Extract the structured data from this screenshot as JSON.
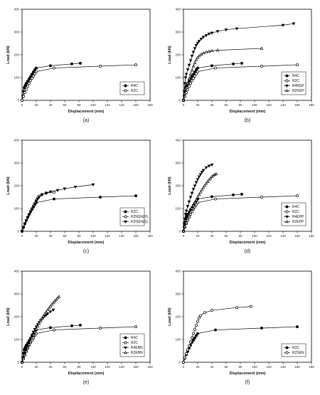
{
  "chart_data": [
    {
      "type": "line",
      "panel_label": "(a)",
      "xlabel": "Displacement (mm)",
      "ylabel": "Load (kN)",
      "xlim": [
        0,
        180
      ],
      "ylim": [
        0,
        400
      ],
      "xticks": [
        0,
        20,
        40,
        60,
        80,
        100,
        120,
        140,
        160,
        180
      ],
      "yticks": [
        0,
        100,
        200,
        300,
        400
      ],
      "legend_position": "bottom-right",
      "series": [
        {
          "name": "R4C",
          "marker": "filled-circle",
          "x": [
            0,
            1,
            2,
            3,
            4,
            5,
            6,
            8,
            10,
            12,
            14,
            16,
            18,
            20,
            40,
            70,
            82
          ],
          "y": [
            0,
            20,
            40,
            55,
            62,
            68,
            75,
            85,
            95,
            105,
            115,
            125,
            135,
            142,
            152,
            160,
            163
          ]
        },
        {
          "name": "R2C",
          "marker": "open-circle",
          "x": [
            0,
            2,
            4,
            6,
            8,
            10,
            12,
            14,
            16,
            18,
            20,
            45,
            110,
            160
          ],
          "y": [
            0,
            18,
            34,
            48,
            62,
            75,
            87,
            97,
            107,
            117,
            126,
            142,
            150,
            156
          ]
        }
      ]
    },
    {
      "type": "line",
      "panel_label": "(b)",
      "xlabel": "Displacement (mm)",
      "ylabel": "Load (kN)",
      "xlim": [
        0,
        180
      ],
      "ylim": [
        0,
        400
      ],
      "xticks": [
        0,
        20,
        40,
        60,
        80,
        100,
        120,
        140,
        160,
        180
      ],
      "yticks": [
        0,
        100,
        200,
        300,
        400
      ],
      "legend_position": "bottom-right",
      "series": [
        {
          "name": "R4C",
          "marker": "filled-circle",
          "x": [
            0,
            1,
            2,
            3,
            4,
            5,
            6,
            8,
            10,
            12,
            14,
            16,
            18,
            20,
            40,
            70,
            82
          ],
          "y": [
            0,
            20,
            40,
            55,
            62,
            68,
            75,
            85,
            95,
            105,
            115,
            125,
            135,
            142,
            152,
            160,
            163
          ]
        },
        {
          "name": "R2C",
          "marker": "open-circle",
          "x": [
            0,
            2,
            4,
            6,
            8,
            10,
            12,
            14,
            16,
            18,
            20,
            45,
            110,
            160
          ],
          "y": [
            0,
            18,
            34,
            48,
            62,
            75,
            87,
            97,
            107,
            117,
            126,
            142,
            150,
            156
          ]
        },
        {
          "name": "R4NSP",
          "marker": "filled-triangle-down",
          "x": [
            0,
            1,
            2,
            3,
            4,
            6,
            8,
            10,
            12,
            14,
            16,
            18,
            20,
            22,
            25,
            28,
            32,
            36,
            40,
            48,
            60,
            75,
            140,
            155
          ],
          "y": [
            0,
            40,
            75,
            100,
            115,
            135,
            155,
            175,
            195,
            212,
            228,
            242,
            252,
            260,
            270,
            278,
            285,
            292,
            296,
            303,
            310,
            315,
            330,
            337
          ]
        },
        {
          "name": "R2NSP",
          "marker": "open-triangle-up",
          "x": [
            0,
            2,
            4,
            6,
            8,
            10,
            12,
            14,
            16,
            18,
            20,
            22,
            25,
            28,
            32,
            36,
            40,
            48,
            110
          ],
          "y": [
            0,
            30,
            55,
            75,
            95,
            115,
            132,
            150,
            165,
            178,
            188,
            195,
            202,
            208,
            212,
            215,
            218,
            220,
            228
          ]
        }
      ]
    },
    {
      "type": "line",
      "panel_label": "(c)",
      "xlabel": "Displacement (mm)",
      "ylabel": "Load (kN)",
      "xlim": [
        0,
        180
      ],
      "ylim": [
        0,
        400
      ],
      "xticks": [
        0,
        20,
        40,
        60,
        80,
        100,
        120,
        140,
        160,
        180
      ],
      "yticks": [
        0,
        100,
        200,
        300,
        400
      ],
      "legend_position": "bottom-right",
      "series": [
        {
          "name": "R2C",
          "marker": "filled-circle",
          "x": [
            0,
            2,
            4,
            6,
            8,
            10,
            12,
            14,
            16,
            18,
            20,
            45,
            110,
            160
          ],
          "y": [
            0,
            18,
            34,
            48,
            62,
            75,
            87,
            97,
            107,
            117,
            126,
            142,
            150,
            156
          ]
        },
        {
          "name": "R2NSN(H)",
          "marker": "open-circle",
          "x": [
            0,
            2,
            4,
            6,
            8,
            10,
            12,
            14,
            16,
            18,
            20,
            22,
            24,
            28,
            34,
            45
          ],
          "y": [
            0,
            18,
            34,
            48,
            62,
            75,
            88,
            100,
            112,
            124,
            136,
            146,
            155,
            162,
            168,
            172
          ]
        },
        {
          "name": "R2NSN(S)",
          "marker": "filled-triangle-down",
          "x": [
            0,
            2,
            4,
            6,
            8,
            10,
            12,
            14,
            16,
            18,
            20,
            22,
            24,
            28,
            34,
            40,
            50,
            60,
            75,
            100
          ],
          "y": [
            0,
            16,
            32,
            46,
            60,
            72,
            84,
            96,
            108,
            120,
            132,
            142,
            150,
            160,
            168,
            174,
            180,
            187,
            195,
            205
          ]
        }
      ]
    },
    {
      "type": "line",
      "panel_label": "(d)",
      "xlabel": "Displacement (mm)",
      "ylabel": "Load (kN)",
      "xlim": [
        0,
        180
      ],
      "ylim": [
        0,
        400
      ],
      "xticks": [
        0,
        20,
        40,
        60,
        80,
        100,
        120,
        140,
        160,
        180
      ],
      "yticks": [
        0,
        100,
        200,
        300,
        400
      ],
      "legend_position": "bottom-right",
      "series": [
        {
          "name": "R4C",
          "marker": "filled-circle",
          "x": [
            0,
            1,
            2,
            3,
            4,
            5,
            6,
            8,
            10,
            12,
            14,
            16,
            18,
            20,
            40,
            70,
            82
          ],
          "y": [
            0,
            20,
            40,
            55,
            62,
            68,
            75,
            85,
            95,
            105,
            115,
            125,
            135,
            142,
            152,
            160,
            163
          ]
        },
        {
          "name": "R2C",
          "marker": "open-circle",
          "x": [
            0,
            2,
            4,
            6,
            8,
            10,
            12,
            14,
            16,
            18,
            20,
            45,
            110,
            160
          ],
          "y": [
            0,
            18,
            34,
            48,
            62,
            75,
            87,
            97,
            107,
            117,
            126,
            142,
            150,
            156
          ]
        },
        {
          "name": "R4EPP",
          "marker": "filled-triangle-down",
          "x": [
            0,
            1,
            2,
            3,
            4,
            6,
            8,
            10,
            12,
            14,
            16,
            18,
            20,
            22,
            24,
            26,
            28,
            32,
            36,
            40
          ],
          "y": [
            0,
            30,
            55,
            75,
            90,
            110,
            130,
            150,
            168,
            185,
            200,
            215,
            228,
            240,
            250,
            260,
            268,
            280,
            287,
            292
          ]
        },
        {
          "name": "R2EPP",
          "marker": "open-triangle-up",
          "x": [
            0,
            2,
            4,
            6,
            8,
            10,
            12,
            14,
            16,
            18,
            20,
            22,
            24,
            26,
            28,
            30,
            32,
            34,
            36,
            38,
            40,
            42,
            44,
            46
          ],
          "y": [
            0,
            20,
            38,
            55,
            70,
            85,
            100,
            113,
            126,
            138,
            150,
            161,
            172,
            182,
            192,
            201,
            210,
            218,
            226,
            233,
            240,
            245,
            249,
            252
          ]
        }
      ]
    },
    {
      "type": "line",
      "panel_label": "(e)",
      "xlabel": "Displacement (mm)",
      "ylabel": "Load (kN)",
      "xlim": [
        0,
        180
      ],
      "ylim": [
        0,
        400
      ],
      "xticks": [
        0,
        20,
        40,
        60,
        80,
        100,
        120,
        140,
        160,
        180
      ],
      "yticks": [
        0,
        100,
        200,
        300,
        400
      ],
      "legend_position": "bottom-right",
      "series": [
        {
          "name": "R4C",
          "marker": "filled-circle",
          "x": [
            0,
            1,
            2,
            3,
            4,
            5,
            6,
            8,
            10,
            12,
            14,
            16,
            18,
            20,
            40,
            70,
            82
          ],
          "y": [
            0,
            20,
            40,
            55,
            62,
            68,
            75,
            85,
            95,
            105,
            115,
            125,
            135,
            142,
            152,
            160,
            163
          ]
        },
        {
          "name": "R2C",
          "marker": "open-circle",
          "x": [
            0,
            2,
            4,
            6,
            8,
            10,
            12,
            14,
            16,
            18,
            20,
            45,
            110,
            160
          ],
          "y": [
            0,
            18,
            34,
            48,
            62,
            75,
            87,
            97,
            107,
            117,
            126,
            142,
            150,
            156
          ]
        },
        {
          "name": "R4EBN",
          "marker": "filled-triangle-down",
          "x": [
            0,
            2,
            4,
            6,
            8,
            10,
            12,
            14,
            16,
            18,
            20,
            22,
            24,
            26,
            28,
            30,
            32,
            34,
            36,
            40,
            44
          ],
          "y": [
            0,
            22,
            42,
            60,
            76,
            92,
            106,
            120,
            133,
            145,
            156,
            166,
            175,
            183,
            190,
            197,
            203,
            208,
            213,
            222,
            230
          ]
        },
        {
          "name": "R2EBN",
          "marker": "open-triangle-up",
          "x": [
            0,
            2,
            4,
            6,
            8,
            10,
            12,
            14,
            16,
            18,
            20,
            22,
            24,
            26,
            28,
            30,
            32,
            34,
            36,
            38,
            40,
            42,
            44,
            46,
            48,
            50,
            52
          ],
          "y": [
            0,
            16,
            32,
            48,
            63,
            78,
            92,
            106,
            120,
            133,
            146,
            158,
            170,
            181,
            192,
            202,
            212,
            221,
            230,
            238,
            246,
            254,
            261,
            268,
            275,
            282,
            288
          ]
        }
      ]
    },
    {
      "type": "line",
      "panel_label": "(f)",
      "xlabel": "Displacement (mm)",
      "ylabel": "Load (kN)",
      "xlim": [
        0,
        180
      ],
      "ylim": [
        0,
        400
      ],
      "xticks": [
        0,
        20,
        40,
        60,
        80,
        100,
        120,
        140,
        160,
        180
      ],
      "yticks": [
        0,
        100,
        200,
        300,
        400
      ],
      "legend_position": "bottom-right",
      "series": [
        {
          "name": "R2C",
          "marker": "filled-circle",
          "x": [
            0,
            2,
            4,
            6,
            8,
            10,
            12,
            14,
            16,
            18,
            20,
            45,
            110,
            160
          ],
          "y": [
            0,
            18,
            34,
            48,
            62,
            75,
            87,
            97,
            107,
            117,
            126,
            142,
            150,
            156
          ]
        },
        {
          "name": "R2SEN",
          "marker": "open-circle",
          "x": [
            0,
            2,
            4,
            6,
            8,
            10,
            12,
            14,
            16,
            18,
            20,
            22,
            24,
            30,
            40,
            75,
            95
          ],
          "y": [
            0,
            20,
            38,
            55,
            72,
            90,
            108,
            126,
            144,
            162,
            180,
            195,
            205,
            218,
            228,
            240,
            245
          ]
        }
      ]
    }
  ]
}
